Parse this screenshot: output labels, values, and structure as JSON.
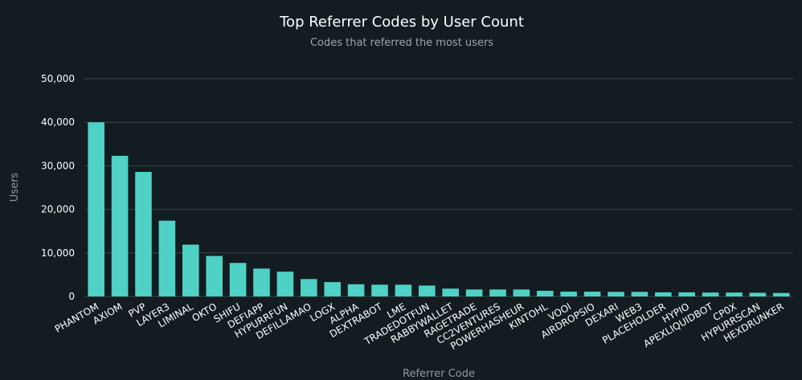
{
  "chart_data": {
    "type": "bar",
    "title": "Top Referrer Codes by User Count",
    "subtitle": "Codes that referred the most users",
    "xlabel": "Referrer Code",
    "ylabel": "Users",
    "ylim": [
      0,
      50000
    ],
    "yticks": [
      "0",
      "10,000",
      "20,000",
      "30,000",
      "40,000",
      "50,000"
    ],
    "grid": true,
    "bar_color": "#4fd1c5",
    "categories": [
      "PHANTOM",
      "AXIOM",
      "PVP",
      "LAYER3",
      "LIMINAL",
      "OKTO",
      "SHIFU",
      "DEFIAPP",
      "HYPURRFUN",
      "DEFILLAMAO",
      "LOGX",
      "ALPHA",
      "DEXTRABOT",
      "LME",
      "TRADEDOTFUN",
      "RABBYWALLET",
      "RAGETRADE",
      "CC2VENTURES",
      "POWERHASHEUR",
      "KINTOHL",
      "VOOI",
      "AIRDROPSIO",
      "DEXARI",
      "WEB3",
      "PLACEHOLDER",
      "HYPIO",
      "APEXLIQUIDBOT",
      "CP0X",
      "HYPURRSCAN",
      "HEXDRUNKER"
    ],
    "values": [
      40000,
      32300,
      28600,
      17400,
      11900,
      9300,
      7700,
      6400,
      5700,
      4000,
      3300,
      2800,
      2700,
      2700,
      2500,
      1800,
      1600,
      1600,
      1600,
      1300,
      1100,
      1100,
      1050,
      1050,
      950,
      950,
      900,
      900,
      850,
      800
    ]
  }
}
